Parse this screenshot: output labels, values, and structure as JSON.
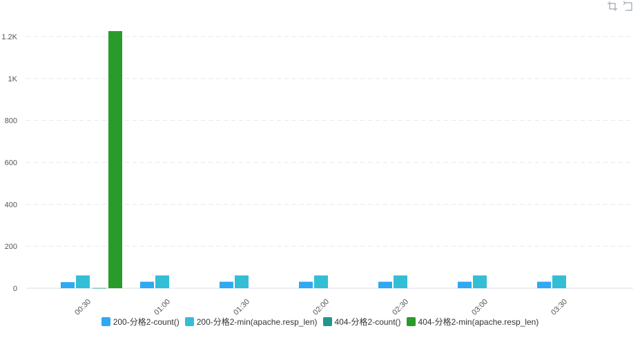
{
  "toolbar": {
    "icons": [
      "crop-icon",
      "undo-icon"
    ]
  },
  "chart_data": {
    "type": "bar",
    "categories": [
      "00:30",
      "01:00",
      "01:30",
      "02:00",
      "02:30",
      "03:00",
      "03:30"
    ],
    "series": [
      {
        "name": "200-分格2-count()",
        "color": "#2ea9f2",
        "values": [
          29,
          31,
          31,
          31,
          31,
          31,
          31
        ]
      },
      {
        "name": "200-分格2-min(apache.resp_len)",
        "color": "#33bed6",
        "values": [
          61,
          61,
          61,
          61,
          61,
          61,
          61
        ]
      },
      {
        "name": "404-分格2-count()",
        "color": "#23968a",
        "values": [
          1,
          null,
          null,
          null,
          null,
          null,
          null
        ]
      },
      {
        "name": "404-分格2-min(apache.resp_len)",
        "color": "#299b2a",
        "values": [
          1226,
          null,
          null,
          null,
          null,
          null,
          null
        ]
      }
    ],
    "y_ticks": [
      {
        "value": 0,
        "label": "0"
      },
      {
        "value": 200,
        "label": "200"
      },
      {
        "value": 400,
        "label": "400"
      },
      {
        "value": 600,
        "label": "600"
      },
      {
        "value": 800,
        "label": "800"
      },
      {
        "value": 1000,
        "label": "1K"
      },
      {
        "value": 1200,
        "label": "1.2K"
      }
    ],
    "ylim": [
      0,
      1200
    ],
    "grid": true,
    "legend_position": "bottom-center"
  }
}
